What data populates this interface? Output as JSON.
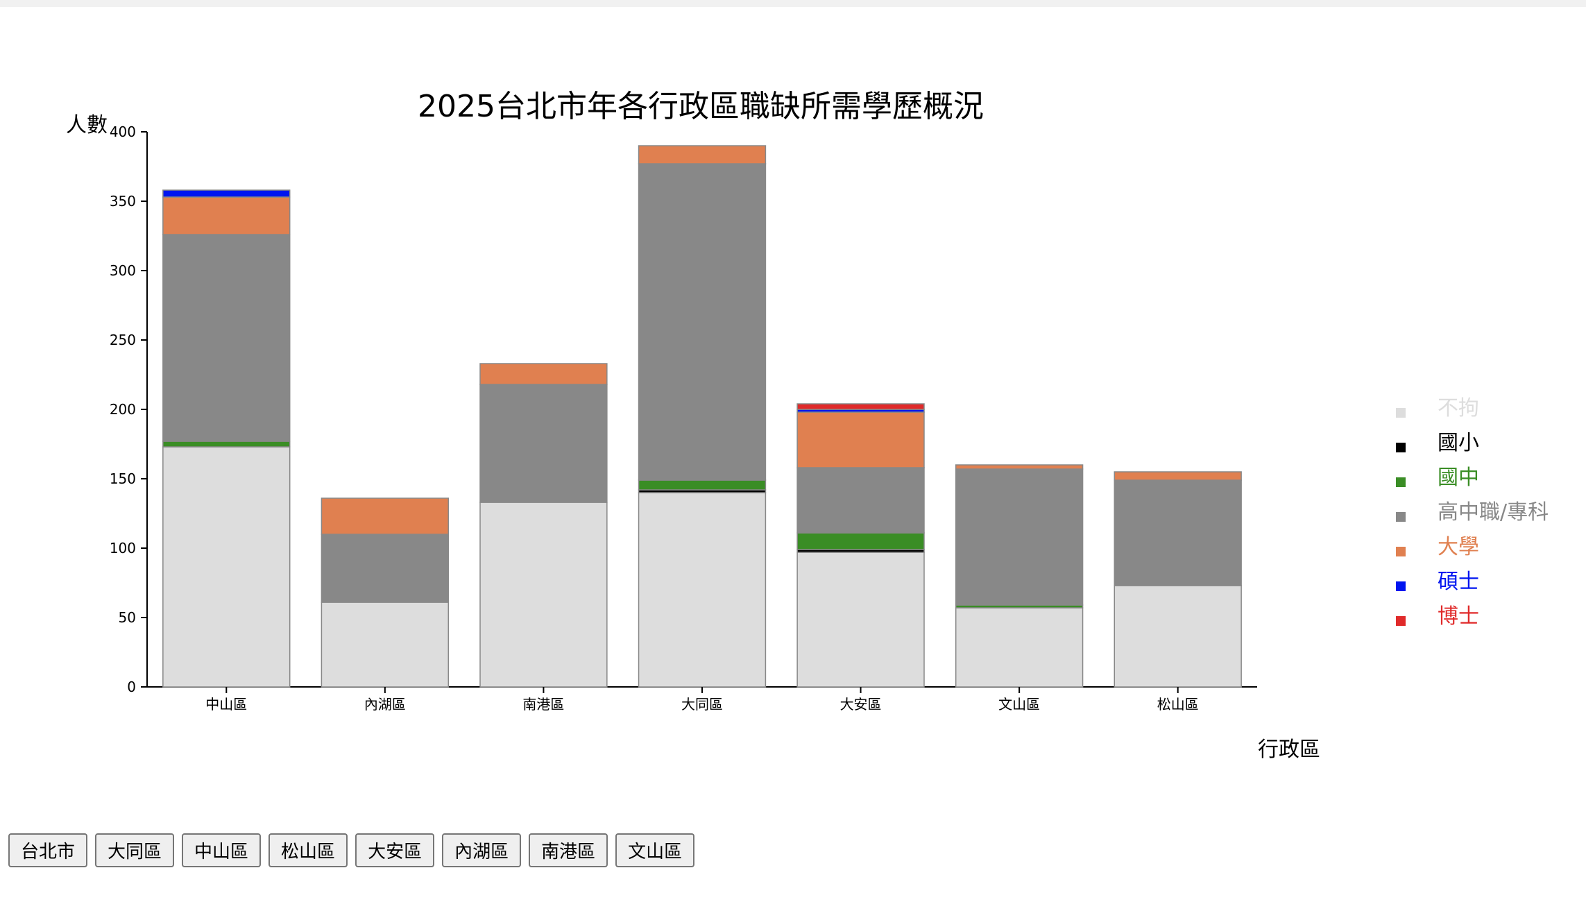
{
  "colors": {
    "不拘": "#dddddd",
    "國小": "#000000",
    "國中": "#3a8d25",
    "高中職/專科": "#888888",
    "大學": "#e08050",
    "碩士": "#0015f0",
    "博士": "#e02a2a"
  },
  "chart_data": {
    "type": "bar",
    "stacked": true,
    "title": "2025台北市年各行政區職缺所需學歷概況",
    "xlabel": "行政區",
    "ylabel": "人數",
    "ylim": [
      0,
      400
    ],
    "yticks": [
      0,
      50,
      100,
      150,
      200,
      250,
      300,
      350,
      400
    ],
    "categories": [
      "中山區",
      "內湖區",
      "南港區",
      "大同區",
      "大安區",
      "文山區",
      "松山區"
    ],
    "legend_position": "right",
    "series": [
      {
        "name": "不拘",
        "values": [
          173,
          61,
          133,
          140,
          97,
          57,
          73
        ]
      },
      {
        "name": "國小",
        "values": [
          0,
          0,
          0,
          2,
          2,
          0,
          0
        ]
      },
      {
        "name": "國中",
        "values": [
          4,
          0,
          0,
          7,
          12,
          2,
          0
        ]
      },
      {
        "name": "高中職/專科",
        "values": [
          149,
          49,
          85,
          228,
          47,
          98,
          76
        ]
      },
      {
        "name": "大學",
        "values": [
          27,
          26,
          15,
          13,
          40,
          3,
          6
        ]
      },
      {
        "name": "碩士",
        "values": [
          5,
          0,
          0,
          0,
          2,
          0,
          0
        ]
      },
      {
        "name": "博士",
        "values": [
          0,
          0,
          0,
          0,
          4,
          0,
          0
        ]
      }
    ]
  },
  "buttons": [
    "台北市",
    "大同區",
    "中山區",
    "松山區",
    "大安區",
    "內湖區",
    "南港區",
    "文山區"
  ]
}
